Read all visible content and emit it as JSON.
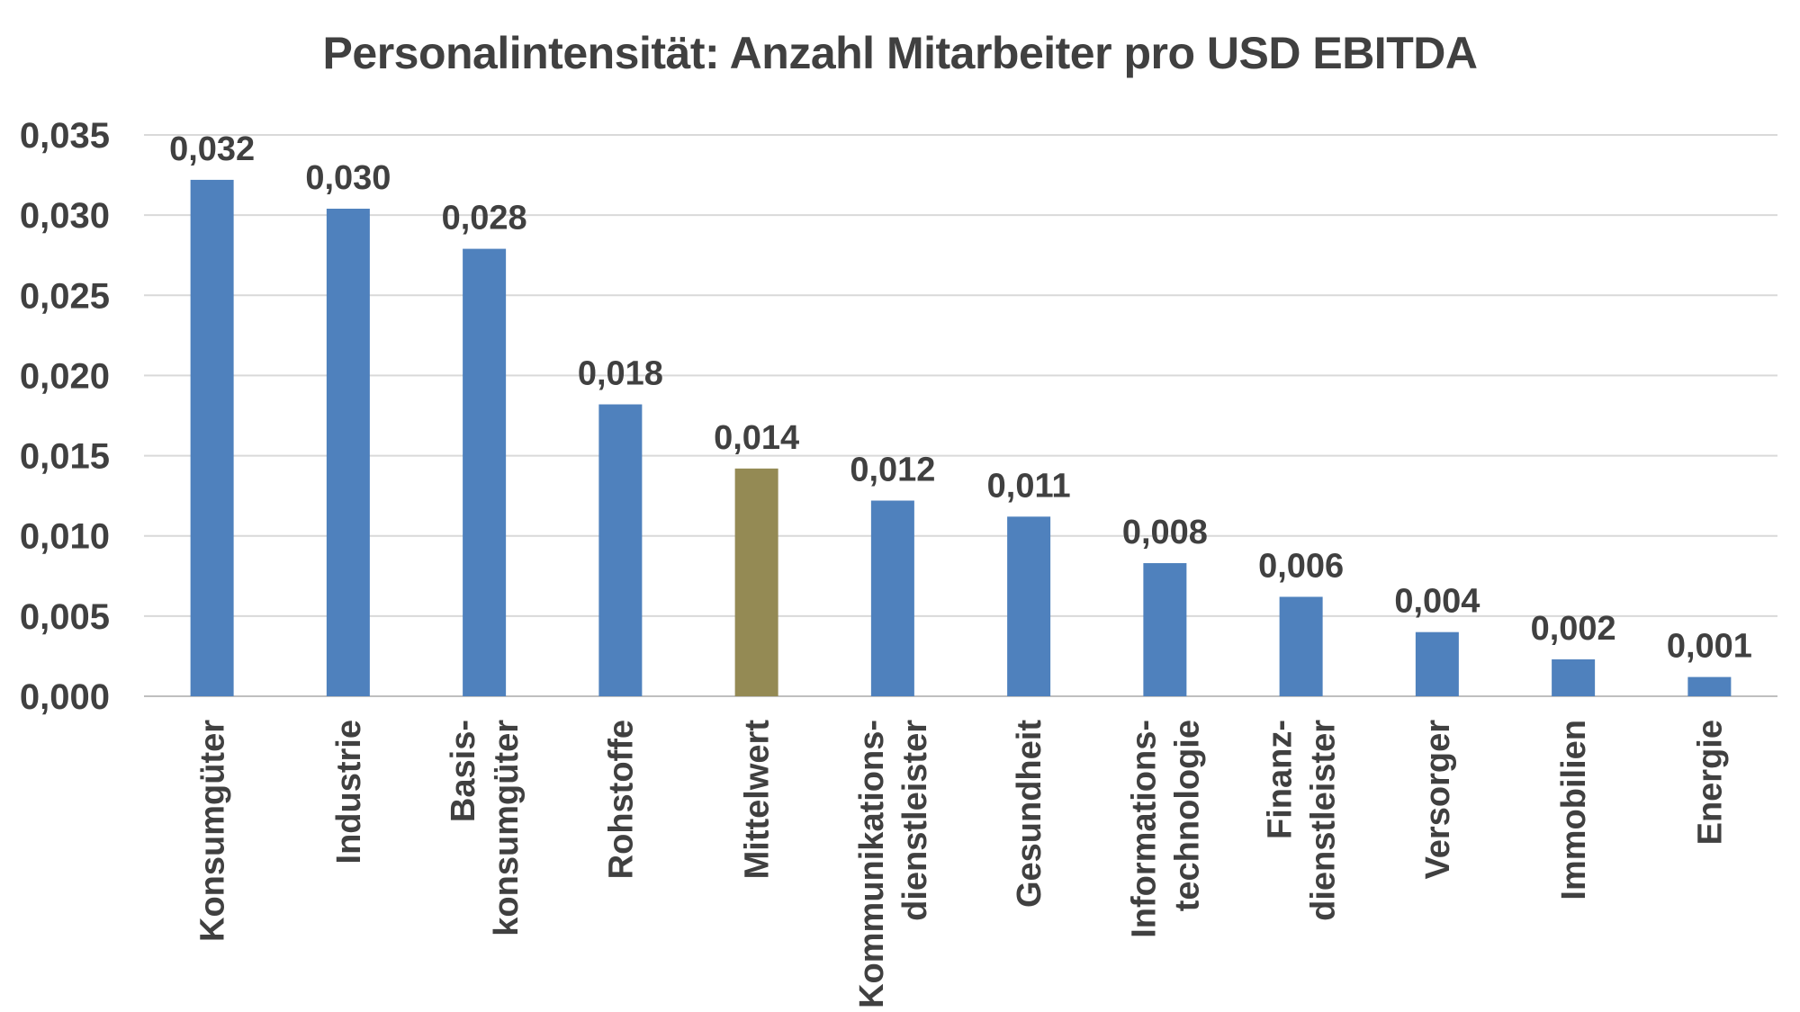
{
  "chart_data": {
    "type": "bar",
    "title": "Personalintensität: Anzahl Mitarbeiter pro USD EBITDA",
    "xlabel": "",
    "ylabel": "",
    "ylim": [
      0,
      0.035
    ],
    "y_ticks": [
      "0,000",
      "0,005",
      "0,010",
      "0,015",
      "0,020",
      "0,025",
      "0,030",
      "0,035"
    ],
    "y_tick_values": [
      0,
      0.005,
      0.01,
      0.015,
      0.02,
      0.025,
      0.03,
      0.035
    ],
    "grid": true,
    "categories": [
      [
        "Konsumgüter"
      ],
      [
        "Industrie"
      ],
      [
        "Basis-",
        "konsumgüter"
      ],
      [
        "Rohstoffe"
      ],
      [
        "Mittelwert"
      ],
      [
        "Kommunikations-",
        "dienstleister"
      ],
      [
        "Gesundheit"
      ],
      [
        "Informations-",
        "technologie"
      ],
      [
        "Finanz-",
        "dienstleister"
      ],
      [
        "Versorger"
      ],
      [
        "Immobilien"
      ],
      [
        "Energie"
      ]
    ],
    "values": [
      0.0322,
      0.0304,
      0.0279,
      0.0182,
      0.0142,
      0.0122,
      0.0112,
      0.0083,
      0.0062,
      0.004,
      0.0023,
      0.0012
    ],
    "data_labels": [
      "0,032",
      "0,030",
      "0,028",
      "0,018",
      "0,014",
      "0,012",
      "0,011",
      "0,008",
      "0,006",
      "0,004",
      "0,002",
      "0,001"
    ],
    "colors": {
      "default": "#4f81bd",
      "highlight": "#948a54",
      "highlight_index": 4
    }
  }
}
